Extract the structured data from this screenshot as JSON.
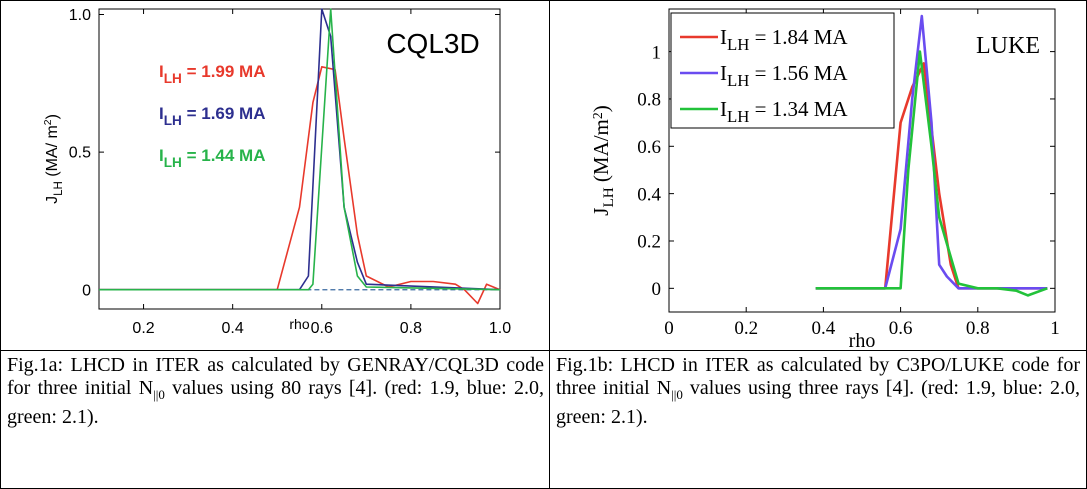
{
  "chart_data": [
    {
      "type": "line",
      "title": "CQL3D",
      "xlabel": "rho",
      "ylabel_main": "J",
      "ylabel_sub": "LH",
      "ylabel_unit": "(MA/ m",
      "ylabel_sup": "2",
      "ylabel_close": ")",
      "xlim": [
        0.1,
        1.0
      ],
      "ylim": [
        -0.07,
        1.02
      ],
      "x_ticks": [
        "0.2",
        "0.4",
        "0.6",
        "0.8",
        "1.0"
      ],
      "x_tick_values": [
        0.2,
        0.4,
        0.6,
        0.8,
        1.0
      ],
      "y_ticks": [
        "0",
        "0.5",
        "1.0"
      ],
      "y_tick_values": [
        0,
        0.5,
        1.0
      ],
      "legend": [
        {
          "main": "I",
          "sub": "LH",
          "rest": " = 1.99 MA",
          "color": "#e8392c"
        },
        {
          "main": "I",
          "sub": "LH",
          "rest": " = 1.69 MA",
          "color": "#2d2f8f"
        },
        {
          "main": "I",
          "sub": "LH",
          "rest": " = 1.44 MA",
          "color": "#27b34a"
        }
      ],
      "series": [
        {
          "color": "#e8392c",
          "x": [
            0.1,
            0.5,
            0.55,
            0.58,
            0.6,
            0.63,
            0.65,
            0.68,
            0.7,
            0.75,
            0.8,
            0.85,
            0.9,
            0.92,
            0.95,
            0.97,
            1.0
          ],
          "y": [
            0,
            0,
            0.3,
            0.68,
            0.81,
            0.8,
            0.55,
            0.2,
            0.05,
            0.01,
            0.03,
            0.03,
            0.02,
            0.0,
            -0.05,
            0.02,
            0
          ]
        },
        {
          "color": "#2d2f8f",
          "x": [
            0.1,
            0.55,
            0.57,
            0.6,
            0.62,
            0.65,
            0.68,
            0.7,
            1.0
          ],
          "y": [
            0,
            0,
            0.05,
            1.02,
            0.92,
            0.3,
            0.1,
            0.02,
            0
          ]
        },
        {
          "color": "#27b34a",
          "x": [
            0.1,
            0.57,
            0.58,
            0.62,
            0.65,
            0.68,
            0.7,
            1.0
          ],
          "y": [
            0,
            0,
            0.02,
            1.02,
            0.3,
            0.05,
            0.01,
            0
          ]
        }
      ]
    },
    {
      "type": "line",
      "title": "LUKE",
      "xlabel": "rho",
      "ylabel_main": "J",
      "ylabel_sub": "LH",
      "ylabel_unit": "(MA/m",
      "ylabel_sup": "2",
      "ylabel_close": ")",
      "xlim": [
        0,
        1.0
      ],
      "ylim": [
        -0.1,
        1.18
      ],
      "x_ticks": [
        "0",
        "0.2",
        "0.4",
        "0.6",
        "0.8",
        "1"
      ],
      "x_tick_values": [
        0,
        0.2,
        0.4,
        0.6,
        0.8,
        1.0
      ],
      "y_ticks": [
        "0",
        "0.2",
        "0.4",
        "0.6",
        "0.8",
        "1"
      ],
      "y_tick_values": [
        0,
        0.2,
        0.4,
        0.6,
        0.8,
        1.0
      ],
      "legend": [
        {
          "main": "I",
          "sub": "LH",
          "rest": " = 1.84 MA",
          "color": "#e8392c"
        },
        {
          "main": "I",
          "sub": "LH",
          "rest": " = 1.56 MA",
          "color": "#6a4cf0"
        },
        {
          "main": "I",
          "sub": "LH",
          "rest": " = 1.34 MA",
          "color": "#22c23a"
        }
      ],
      "series": [
        {
          "color": "#e8392c",
          "x": [
            0.38,
            0.56,
            0.6,
            0.63,
            0.66,
            0.7,
            0.73,
            0.75,
            0.98
          ],
          "y": [
            0,
            0,
            0.7,
            0.85,
            0.95,
            0.4,
            0.1,
            0,
            0
          ]
        },
        {
          "color": "#6a4cf0",
          "x": [
            0.38,
            0.56,
            0.6,
            0.63,
            0.655,
            0.68,
            0.7,
            0.72,
            0.75,
            0.98
          ],
          "y": [
            0,
            0,
            0.25,
            0.8,
            1.15,
            0.7,
            0.1,
            0.05,
            0,
            0
          ]
        },
        {
          "color": "#22c23a",
          "x": [
            0.38,
            0.6,
            0.62,
            0.65,
            0.68,
            0.7,
            0.75,
            0.8,
            0.85,
            0.9,
            0.93,
            0.98
          ],
          "y": [
            0,
            0,
            0.5,
            1.0,
            0.6,
            0.3,
            0.02,
            0,
            0,
            -0.01,
            -0.03,
            0
          ]
        }
      ]
    }
  ],
  "captions": {
    "a_pre": "Fig.1a: LHCD in ITER as calculated by GENRAY/CQL3D code for three initial N",
    "a_sub": "||0",
    "a_post": " values using 80 rays [4]. (red: 1.9, blue: 2.0, green: 2.1).",
    "b_pre": "Fig.1b: LHCD in ITER as calculated by C3PO/LUKE code for three initial N",
    "b_sub": "||0",
    "b_post": " values using three rays [4]. (red: 1.9, blue: 2.0, green: 2.1)."
  }
}
